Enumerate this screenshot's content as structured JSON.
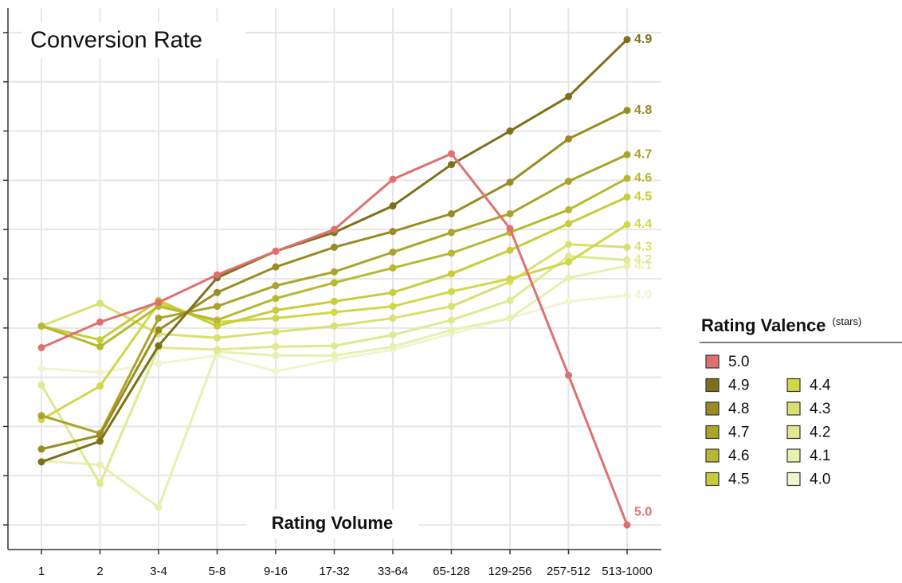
{
  "chart_data": {
    "type": "line",
    "title": "Conversion Rate",
    "x_label": "Rating Volume",
    "legend_title": "Rating Valence",
    "legend_title_note": "(stars)",
    "categories": [
      "1",
      "2",
      "3-4",
      "5-8",
      "9-16",
      "17-32",
      "33-64",
      "65-128",
      "129-256",
      "257-512",
      "513-1000"
    ],
    "ylim": [
      -0.25,
      5.25
    ],
    "yticks": [
      0,
      0.5,
      1,
      1.5,
      2,
      2.5,
      3,
      3.5,
      4,
      4.5,
      5
    ],
    "grid": true,
    "series": [
      {
        "name": "5.0",
        "color": "#e07070",
        "values": [
          1.8,
          2.06,
          2.26,
          2.54,
          2.78,
          3.0,
          3.51,
          3.77,
          3.01,
          1.52,
          0.0
        ]
      },
      {
        "name": "4.9",
        "color": "#7d7018",
        "values": [
          0.64,
          0.85,
          1.82,
          2.51,
          2.78,
          2.97,
          3.24,
          3.66,
          4.0,
          4.35,
          4.93
        ]
      },
      {
        "name": "4.8",
        "color": "#9a8c20",
        "values": [
          0.77,
          0.91,
          1.98,
          2.36,
          2.62,
          2.82,
          2.98,
          3.16,
          3.48,
          3.92,
          4.21
        ]
      },
      {
        "name": "4.7",
        "color": "#aaa428",
        "values": [
          1.11,
          0.93,
          2.1,
          2.22,
          2.43,
          2.57,
          2.77,
          2.97,
          3.16,
          3.49,
          3.76
        ]
      },
      {
        "name": "4.6",
        "color": "#b8b830",
        "values": [
          2.02,
          1.81,
          2.22,
          2.08,
          2.3,
          2.46,
          2.61,
          2.76,
          2.97,
          3.2,
          3.52
        ]
      },
      {
        "name": "4.5",
        "color": "#c8cc38",
        "values": [
          2.02,
          1.88,
          2.28,
          2.02,
          2.18,
          2.27,
          2.36,
          2.55,
          2.79,
          3.06,
          3.33
        ]
      },
      {
        "name": "4.4",
        "color": "#d0d848",
        "values": [
          1.07,
          1.41,
          2.25,
          2.06,
          2.1,
          2.16,
          2.22,
          2.37,
          2.5,
          2.67,
          3.05
        ]
      },
      {
        "name": "4.3",
        "color": "#d8e070",
        "values": [
          2.02,
          2.25,
          1.94,
          1.9,
          1.96,
          2.02,
          2.1,
          2.22,
          2.47,
          2.85,
          2.82
        ]
      },
      {
        "name": "4.2",
        "color": "#e0e890",
        "values": [
          1.42,
          0.42,
          1.8,
          1.78,
          1.81,
          1.82,
          1.93,
          2.08,
          2.28,
          2.73,
          2.69
        ]
      },
      {
        "name": "4.1",
        "color": "#e8f0b0",
        "values": [
          0.65,
          0.61,
          0.18,
          1.76,
          1.72,
          1.72,
          1.81,
          1.98,
          2.1,
          2.51,
          2.63
        ]
      },
      {
        "name": "4.0",
        "color": "#f0f4d0",
        "values": [
          1.59,
          1.55,
          1.64,
          1.72,
          1.56,
          1.68,
          1.78,
          1.94,
          2.1,
          2.27,
          2.33
        ]
      }
    ]
  }
}
